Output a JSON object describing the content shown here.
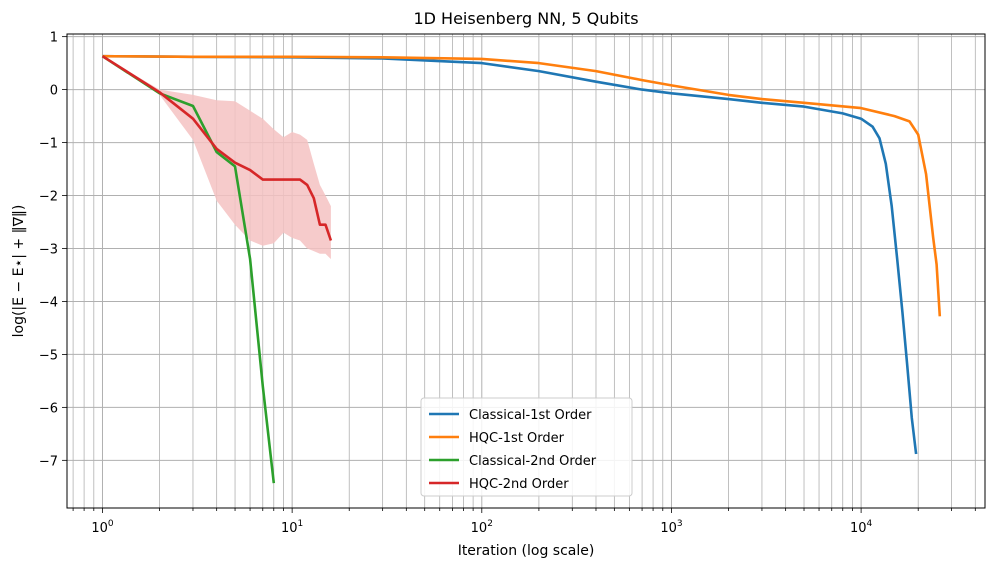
{
  "chart_data": {
    "type": "line",
    "title": "1D Heisenberg NN, 5 Qubits",
    "xlabel": "Iteration (log scale)",
    "ylabel": "log(|E − E⋆| + ‖∇‖)",
    "xscale": "log",
    "xlim": [
      0.65,
      45000
    ],
    "ylim": [
      -7.9,
      1.05
    ],
    "xticks": [
      {
        "value": 1,
        "base": "10",
        "exp": "0"
      },
      {
        "value": 10,
        "base": "10",
        "exp": "1"
      },
      {
        "value": 100,
        "base": "10",
        "exp": "2"
      },
      {
        "value": 1000,
        "base": "10",
        "exp": "3"
      },
      {
        "value": 10000,
        "base": "10",
        "exp": "4"
      }
    ],
    "yticks": [
      {
        "value": 1,
        "label": "1"
      },
      {
        "value": 0,
        "label": "0"
      },
      {
        "value": -1,
        "label": "−1"
      },
      {
        "value": -2,
        "label": "−2"
      },
      {
        "value": -3,
        "label": "−3"
      },
      {
        "value": -4,
        "label": "−4"
      },
      {
        "value": -5,
        "label": "−5"
      },
      {
        "value": -6,
        "label": "−6"
      },
      {
        "value": -7,
        "label": "−7"
      }
    ],
    "grid": true,
    "legend_position": "bottom-center",
    "series": [
      {
        "name": "Classical-1st Order",
        "color": "#1f77b4",
        "x": [
          1,
          3,
          10,
          30,
          100,
          200,
          400,
          700,
          1000,
          2000,
          3000,
          5000,
          8000,
          10000,
          11500,
          12500,
          13500,
          14500,
          15500,
          16500,
          17500,
          18500,
          19500
        ],
        "y": [
          0.63,
          0.62,
          0.61,
          0.59,
          0.5,
          0.35,
          0.15,
          0.0,
          -0.07,
          -0.18,
          -0.25,
          -0.32,
          -0.45,
          -0.55,
          -0.7,
          -0.92,
          -1.4,
          -2.2,
          -3.2,
          -4.2,
          -5.2,
          -6.2,
          -6.88
        ]
      },
      {
        "name": "HQC-1st Order",
        "color": "#ff7f0e",
        "x": [
          1,
          3,
          10,
          30,
          100,
          200,
          400,
          700,
          1000,
          2000,
          3000,
          5000,
          10000,
          15000,
          18000,
          20000,
          22000,
          24000,
          25000,
          26000
        ],
        "y": [
          0.63,
          0.62,
          0.62,
          0.61,
          0.58,
          0.5,
          0.35,
          0.18,
          0.08,
          -0.1,
          -0.18,
          -0.25,
          -0.35,
          -0.5,
          -0.6,
          -0.85,
          -1.6,
          -2.8,
          -3.3,
          -4.28
        ]
      },
      {
        "name": "Classical-2nd Order",
        "color": "#2ca02c",
        "x": [
          1,
          2,
          3,
          4,
          5,
          6,
          7,
          8
        ],
        "y": [
          0.63,
          -0.07,
          -0.31,
          -1.18,
          -1.45,
          -3.2,
          -5.6,
          -7.43
        ]
      },
      {
        "name": "HQC-2nd Order",
        "color": "#d62728",
        "x": [
          1,
          2,
          3,
          4,
          5,
          6,
          7,
          8,
          9,
          10,
          11,
          12,
          13,
          14,
          15,
          16
        ],
        "y": [
          0.63,
          -0.05,
          -0.55,
          -1.12,
          -1.38,
          -1.52,
          -1.7,
          -1.7,
          -1.7,
          -1.7,
          -1.7,
          -1.8,
          -2.05,
          -2.55,
          -2.55,
          -2.85
        ],
        "band_upper": [
          0.63,
          0.0,
          -0.1,
          -0.2,
          -0.22,
          -0.4,
          -0.55,
          -0.75,
          -0.9,
          -0.8,
          -0.85,
          -0.95,
          -1.4,
          -1.8,
          -2.0,
          -2.2
        ],
        "band_lower": [
          0.63,
          -0.1,
          -0.95,
          -2.1,
          -2.55,
          -2.85,
          -2.95,
          -2.9,
          -2.7,
          -2.8,
          -2.85,
          -3.0,
          -3.05,
          -3.1,
          -3.1,
          -3.2
        ],
        "band_color": "#f4c2c2"
      }
    ]
  }
}
